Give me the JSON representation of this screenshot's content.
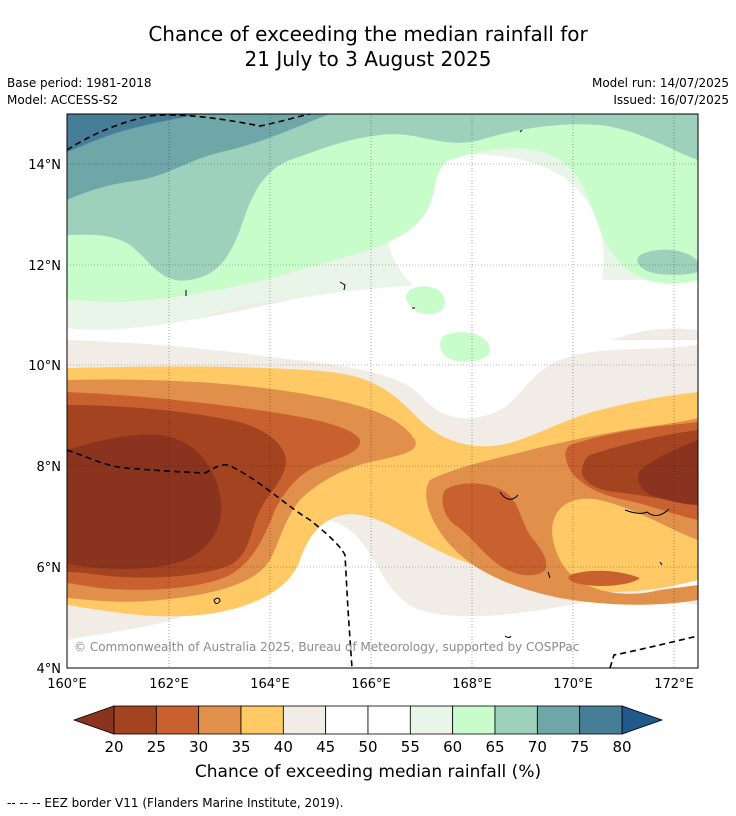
{
  "title_line1": "Chance of exceeding the median rainfall for",
  "title_line2": "21 July to 3 August 2025",
  "base_period": "Base period: 1981-2018",
  "model": "Model: ACCESS-S2",
  "model_run": "Model run: 14/07/2025",
  "issued": "Issued: 16/07/2025",
  "copyright": "© Commonwealth of Australia 2025, Bureau of Meteorology, supported by COSPPac",
  "colorbar": {
    "label": "Chance of exceeding median rainfall (%)",
    "ticks": [
      "20",
      "25",
      "30",
      "35",
      "40",
      "45",
      "50",
      "55",
      "60",
      "65",
      "70",
      "75",
      "80"
    ],
    "colors": [
      "#a3431f",
      "#c8602f",
      "#e0904a",
      "#ffc966",
      "#f1ece6",
      "#ffffff",
      "#ffffff",
      "#e9f5e9",
      "#c9fccb",
      "#9dd1bb",
      "#6fa7a8",
      "#477e97"
    ],
    "low_extend_color": "#8a3420",
    "high_extend_color": "#1f5a8a"
  },
  "footnote": "--  --  -- EEZ border V11 (Flanders Marine Institute, 2019).",
  "map": {
    "lat_labels": [
      "14°N",
      "12°N",
      "10°N",
      "8°N",
      "6°N",
      "4°N"
    ],
    "lon_labels": [
      "160°E",
      "162°E",
      "164°E",
      "166°E",
      "168°E",
      "170°E",
      "172°E"
    ],
    "background_color": "#f1ece6"
  }
}
